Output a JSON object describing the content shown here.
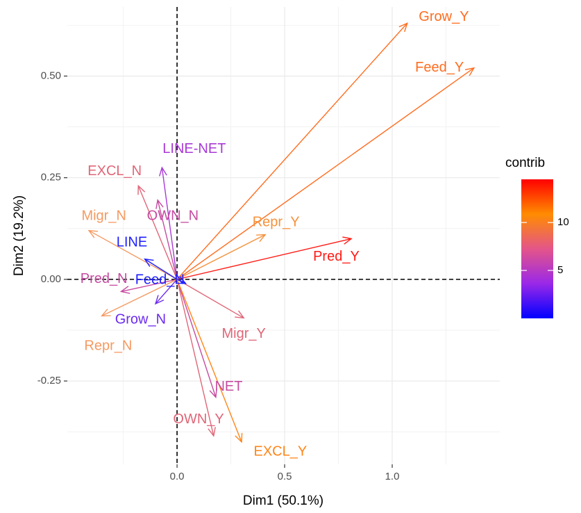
{
  "chart_data": {
    "type": "biplot",
    "title": "",
    "xlabel": "Dim1 (50.1%)",
    "ylabel": "Dim2 (19.2%)",
    "xlim": [
      -0.51,
      1.5
    ],
    "ylim": [
      -0.455,
      0.67
    ],
    "x_ticks": [
      {
        "value": 0.0,
        "label": "0.0"
      },
      {
        "value": 0.5,
        "label": "0.5"
      },
      {
        "value": 1.0,
        "label": "1.0"
      }
    ],
    "y_ticks": [
      {
        "value": -0.25,
        "label": "-0.25"
      },
      {
        "value": 0.0,
        "label": "0.00"
      },
      {
        "value": 0.25,
        "label": "0.25"
      },
      {
        "value": 0.5,
        "label": "0.50"
      }
    ],
    "grid": true,
    "reference_lines": [
      "x=0 dashed",
      "y=0 dashed"
    ],
    "legend": {
      "title": "contrib",
      "placement": "right",
      "scale": "continuous",
      "range": [
        0,
        14.5
      ],
      "ticks": [
        {
          "value": 5,
          "label": "5"
        },
        {
          "value": 10,
          "label": "10"
        }
      ],
      "colors": [
        "#0000ff",
        "#9a28e8",
        "#e45589",
        "#ff8c00",
        "#ff0000"
      ]
    },
    "variables": [
      {
        "name": "Grow_Y",
        "x": 1.07,
        "y": 0.63,
        "contrib": 11.0,
        "color": "#ff6d1f"
      },
      {
        "name": "Feed_Y",
        "x": 1.38,
        "y": 0.52,
        "contrib": 11.0,
        "color": "#ff6d1f"
      },
      {
        "name": "Pred_Y",
        "x": 0.81,
        "y": 0.1,
        "contrib": 14.0,
        "color": "#ff1a14"
      },
      {
        "name": "Repr_Y",
        "x": 0.41,
        "y": 0.11,
        "contrib": 8.5,
        "color": "#f7913a"
      },
      {
        "name": "Migr_Y",
        "x": 0.31,
        "y": -0.095,
        "contrib": 5.5,
        "color": "#e06678"
      },
      {
        "name": "NET",
        "x": 0.18,
        "y": -0.29,
        "contrib": 4.5,
        "color": "#c64ba0"
      },
      {
        "name": "OWN_Y",
        "x": 0.17,
        "y": -0.385,
        "contrib": 5.5,
        "color": "#e06678"
      },
      {
        "name": "EXCL_Y",
        "x": 0.3,
        "y": -0.4,
        "contrib": 9.5,
        "color": "#ff8517"
      },
      {
        "name": "LINE-NET",
        "x": -0.07,
        "y": 0.275,
        "contrib": 3.5,
        "color": "#a83ad6"
      },
      {
        "name": "EXCL_N",
        "x": -0.18,
        "y": 0.23,
        "contrib": 5.5,
        "color": "#e06678"
      },
      {
        "name": "OWN_N",
        "x": -0.09,
        "y": 0.195,
        "contrib": 4.5,
        "color": "#c64ba0"
      },
      {
        "name": "Migr_N",
        "x": -0.41,
        "y": 0.12,
        "contrib": 7.5,
        "color": "#f49a62"
      },
      {
        "name": "LINE",
        "x": -0.15,
        "y": 0.05,
        "contrib": 1.0,
        "color": "#1f1fff"
      },
      {
        "name": "Pred_N",
        "x": -0.26,
        "y": -0.03,
        "contrib": 4.5,
        "color": "#c64ba0"
      },
      {
        "name": "Feed_N",
        "x": 0.04,
        "y": -0.01,
        "contrib": 1.0,
        "color": "#1f1fff"
      },
      {
        "name": "Grow_N",
        "x": -0.1,
        "y": -0.06,
        "contrib": 2.5,
        "color": "#6b2bf0"
      },
      {
        "name": "Repr_N",
        "x": -0.35,
        "y": -0.09,
        "contrib": 7.0,
        "color": "#f49a62"
      }
    ],
    "labels": [
      {
        "name": "Grow_Y",
        "x": 1.24,
        "y": 0.645
      },
      {
        "name": "Feed_Y",
        "x": 1.22,
        "y": 0.52
      },
      {
        "name": "Pred_Y",
        "x": 0.74,
        "y": 0.055
      },
      {
        "name": "Repr_Y",
        "x": 0.46,
        "y": 0.14
      },
      {
        "name": "Migr_Y",
        "x": 0.31,
        "y": -0.135
      },
      {
        "name": "NET",
        "x": 0.24,
        "y": -0.265
      },
      {
        "name": "OWN_Y",
        "x": 0.1,
        "y": -0.345
      },
      {
        "name": "EXCL_Y",
        "x": 0.48,
        "y": -0.425
      },
      {
        "name": "LINE-NET",
        "x": 0.08,
        "y": 0.32
      },
      {
        "name": "EXCL_N",
        "x": -0.29,
        "y": 0.265
      },
      {
        "name": "OWN_N",
        "x": -0.02,
        "y": 0.155
      },
      {
        "name": "Migr_N",
        "x": -0.34,
        "y": 0.155
      },
      {
        "name": "LINE",
        "x": -0.21,
        "y": 0.09
      },
      {
        "name": "Pred_N",
        "x": -0.34,
        "y": 0.0
      },
      {
        "name": "Feed_N",
        "x": -0.08,
        "y": -0.002
      },
      {
        "name": "Grow_N",
        "x": -0.17,
        "y": -0.1
      },
      {
        "name": "Repr_N",
        "x": -0.32,
        "y": -0.165
      }
    ]
  }
}
